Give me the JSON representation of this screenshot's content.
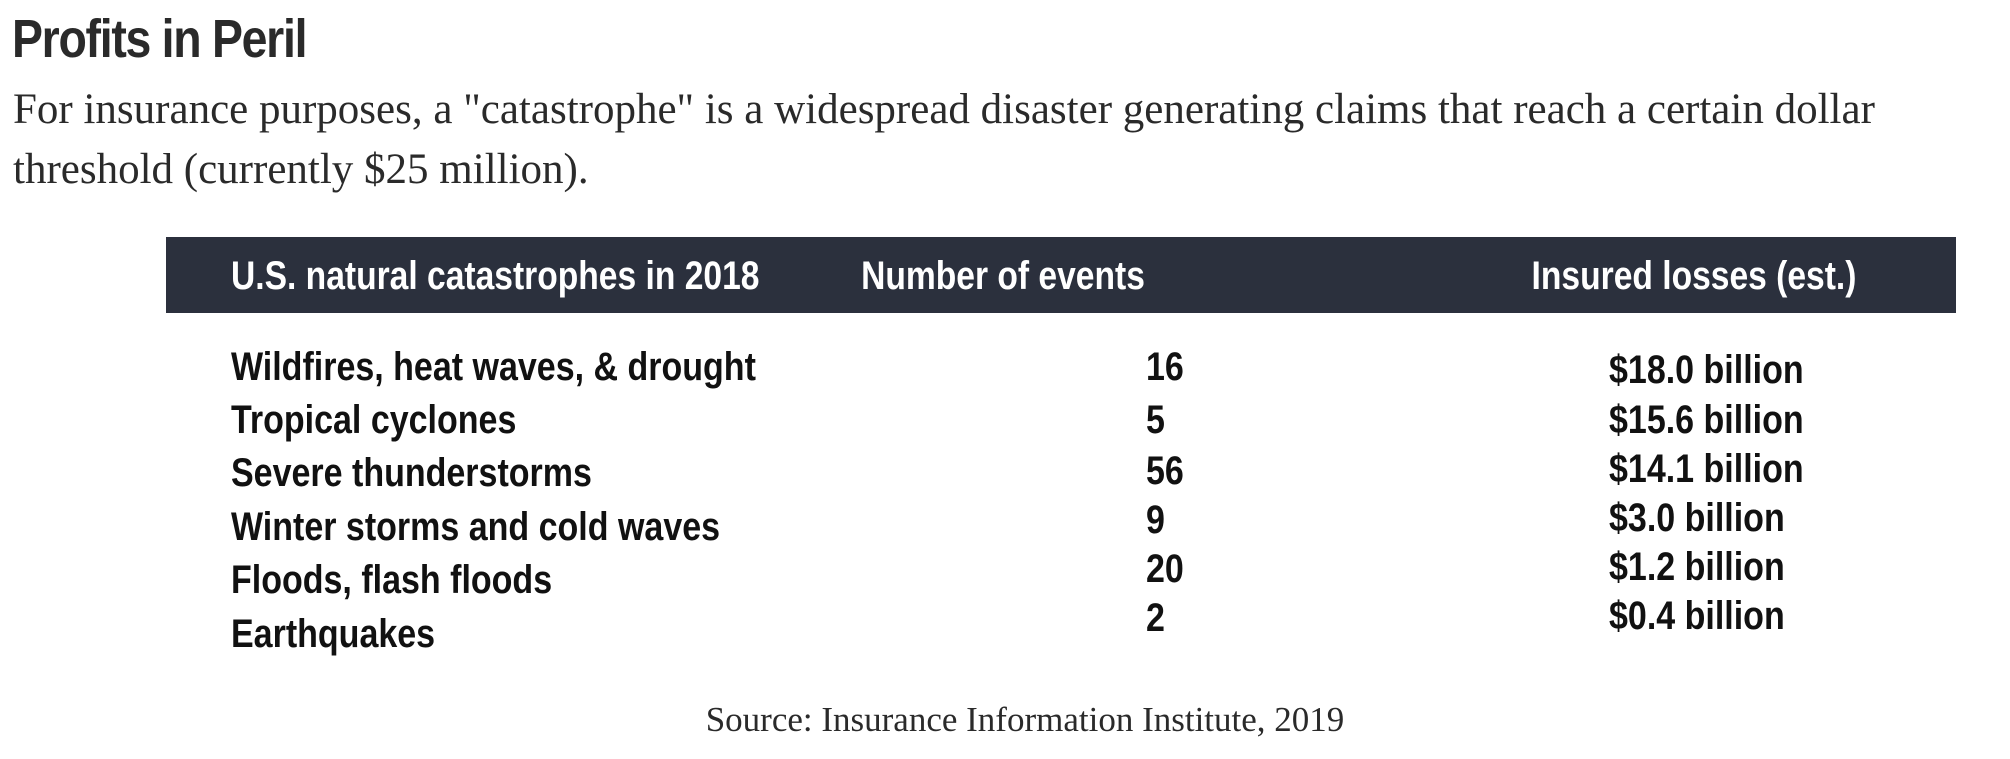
{
  "title": "Profits in Peril",
  "subtitle": "For insurance purposes, a \"catastrophe\" is a widespread disaster generating claims that reach a certain dollar threshold (currently $25 million).",
  "source": "Source: Insurance Information Institute, 2019",
  "colors": {
    "header_background": "#2b303d",
    "header_text": "#ffffff",
    "body_text": "#111111"
  },
  "chart_data": {
    "type": "table",
    "columns": [
      "U.S. natural catastrophes in 2018",
      "Number of events",
      "Insured losses (est.)"
    ],
    "rows": [
      {
        "category": "Wildfires, heat waves, & drought",
        "events": "16",
        "losses": "$18.0 billion"
      },
      {
        "category": "Tropical cyclones",
        "events": "5",
        "losses": "$15.6 billion"
      },
      {
        "category": "Severe thunderstorms",
        "events": "56",
        "losses": "$14.1 billion"
      },
      {
        "category": "Winter storms and cold waves",
        "events": "9",
        "losses": "$3.0 billion"
      },
      {
        "category": "Floods, flash floods",
        "events": "20",
        "losses": "$1.2 billion"
      },
      {
        "category": "Earthquakes",
        "events": "2",
        "losses": "$0.4 billion"
      }
    ]
  }
}
